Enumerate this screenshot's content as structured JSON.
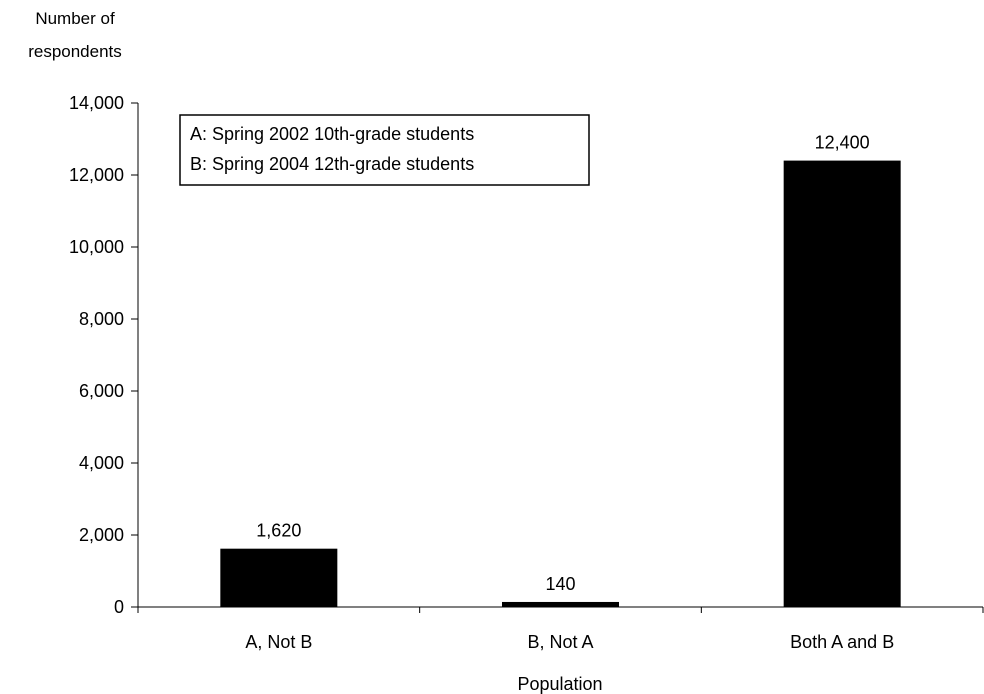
{
  "chart_data": {
    "type": "bar",
    "title": "",
    "ylabel": [
      "Number of",
      "respondents"
    ],
    "xlabel": "Population",
    "ylim": [
      0,
      14000
    ],
    "yticks": [
      0,
      2000,
      4000,
      6000,
      8000,
      10000,
      12000,
      14000
    ],
    "ytick_labels": [
      "0",
      "2,000",
      "4,000",
      "6,000",
      "8,000",
      "10,000",
      "12,000",
      "14,000"
    ],
    "categories": [
      "A, Not B",
      "B, Not A",
      "Both A and B"
    ],
    "values": [
      1620,
      140,
      12400
    ],
    "data_labels": [
      "1,620",
      "140",
      "12,400"
    ],
    "bar_color": "#000000",
    "grid": false,
    "legend": {
      "placement": "top-left",
      "entries": [
        "A: Spring 2002 10th-grade students",
        "B: Spring 2004 12th-grade students"
      ]
    }
  }
}
